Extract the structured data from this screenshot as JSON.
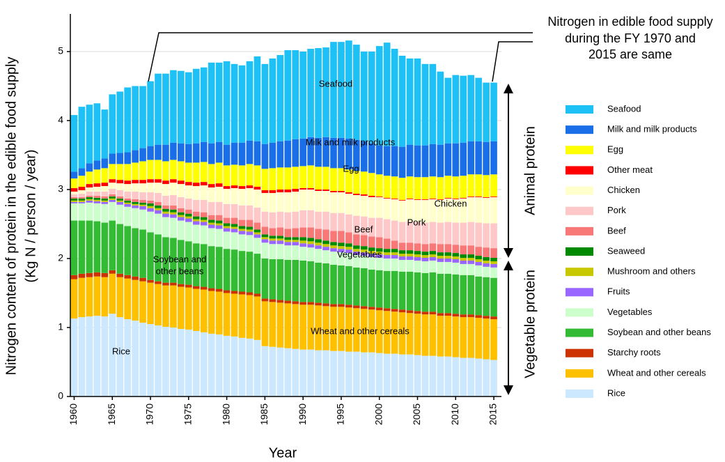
{
  "chart_data": {
    "type": "stacked_bar",
    "y_label": [
      "Nitrogen content of protein in the edible food supply",
      "(Kg N / person / year)"
    ],
    "x_label": "Year",
    "annotation": [
      "Nitrogen in edible food  supply",
      "during the FY 1970 and",
      "2015 are same"
    ],
    "groups": [
      "Animal protein",
      "Vegetable protein"
    ],
    "labels": [
      "Seafood",
      "Milk and milk products",
      "Egg",
      "Chicken",
      "Pork",
      "Beef",
      "Vegetables",
      "Soybean and",
      "other beans",
      "Wheat and other cereals",
      "Rice"
    ],
    "x": [
      1960,
      1961,
      1962,
      1963,
      1964,
      1965,
      1966,
      1967,
      1968,
      1969,
      1970,
      1971,
      1972,
      1973,
      1974,
      1975,
      1976,
      1977,
      1978,
      1979,
      1980,
      1981,
      1982,
      1983,
      1984,
      1985,
      1986,
      1987,
      1988,
      1989,
      1990,
      1991,
      1992,
      1993,
      1994,
      1995,
      1996,
      1997,
      1998,
      1999,
      2000,
      2001,
      2002,
      2003,
      2004,
      2005,
      2006,
      2007,
      2008,
      2009,
      2010,
      2011,
      2012,
      2013,
      2014,
      2015
    ],
    "xlim": [
      1959.5,
      2016
    ],
    "xticks": [
      1960,
      1965,
      1970,
      1975,
      1980,
      1985,
      1990,
      1995,
      2000,
      2005,
      2010,
      2015
    ],
    "ylim": [
      0,
      5.5
    ],
    "yticks": [
      0,
      1,
      2,
      3,
      4,
      5
    ],
    "grid": true,
    "legend": "right",
    "series": [
      {
        "name": "Rice",
        "color": "#cce8ff",
        "values": [
          1.13,
          1.15,
          1.16,
          1.17,
          1.16,
          1.2,
          1.15,
          1.12,
          1.1,
          1.07,
          1.05,
          1.03,
          1.01,
          1.0,
          0.98,
          0.97,
          0.95,
          0.93,
          0.91,
          0.9,
          0.88,
          0.87,
          0.85,
          0.84,
          0.82,
          0.73,
          0.72,
          0.71,
          0.7,
          0.69,
          0.68,
          0.68,
          0.67,
          0.67,
          0.66,
          0.66,
          0.65,
          0.65,
          0.64,
          0.64,
          0.63,
          0.62,
          0.62,
          0.61,
          0.61,
          0.6,
          0.59,
          0.59,
          0.58,
          0.58,
          0.57,
          0.56,
          0.56,
          0.55,
          0.54,
          0.53
        ]
      },
      {
        "name": "Wheat and other cereals",
        "color": "#ffc000",
        "values": [
          0.57,
          0.57,
          0.57,
          0.57,
          0.57,
          0.58,
          0.58,
          0.59,
          0.59,
          0.6,
          0.6,
          0.6,
          0.6,
          0.61,
          0.61,
          0.61,
          0.61,
          0.62,
          0.62,
          0.62,
          0.62,
          0.62,
          0.63,
          0.63,
          0.63,
          0.65,
          0.65,
          0.65,
          0.65,
          0.65,
          0.65,
          0.65,
          0.65,
          0.64,
          0.64,
          0.64,
          0.64,
          0.63,
          0.63,
          0.62,
          0.62,
          0.62,
          0.61,
          0.61,
          0.6,
          0.6,
          0.6,
          0.6,
          0.59,
          0.59,
          0.59,
          0.59,
          0.59,
          0.59,
          0.59,
          0.59
        ]
      },
      {
        "name": "Starchy roots",
        "color": "#cc3300",
        "values": [
          0.06,
          0.06,
          0.06,
          0.06,
          0.06,
          0.05,
          0.05,
          0.05,
          0.05,
          0.05,
          0.04,
          0.04,
          0.04,
          0.04,
          0.04,
          0.04,
          0.04,
          0.04,
          0.04,
          0.04,
          0.04,
          0.04,
          0.04,
          0.04,
          0.04,
          0.04,
          0.04,
          0.04,
          0.04,
          0.04,
          0.04,
          0.04,
          0.04,
          0.04,
          0.04,
          0.04,
          0.04,
          0.04,
          0.04,
          0.04,
          0.04,
          0.04,
          0.04,
          0.04,
          0.04,
          0.04,
          0.04,
          0.04,
          0.04,
          0.04,
          0.04,
          0.04,
          0.04,
          0.04,
          0.04,
          0.04
        ]
      },
      {
        "name": "Soybean and other beans",
        "color": "#33bb33",
        "values": [
          0.79,
          0.77,
          0.76,
          0.74,
          0.73,
          0.72,
          0.72,
          0.71,
          0.7,
          0.7,
          0.69,
          0.68,
          0.66,
          0.65,
          0.64,
          0.63,
          0.62,
          0.62,
          0.61,
          0.61,
          0.6,
          0.6,
          0.59,
          0.59,
          0.58,
          0.58,
          0.58,
          0.59,
          0.59,
          0.6,
          0.6,
          0.59,
          0.58,
          0.58,
          0.57,
          0.56,
          0.56,
          0.55,
          0.55,
          0.54,
          0.54,
          0.54,
          0.55,
          0.55,
          0.56,
          0.56,
          0.56,
          0.57,
          0.57,
          0.57,
          0.57,
          0.57,
          0.57,
          0.56,
          0.56,
          0.56
        ]
      },
      {
        "name": "Vegetables",
        "color": "#ccffcc",
        "values": [
          0.25,
          0.25,
          0.26,
          0.26,
          0.27,
          0.27,
          0.28,
          0.28,
          0.29,
          0.29,
          0.3,
          0.3,
          0.29,
          0.29,
          0.28,
          0.28,
          0.27,
          0.27,
          0.26,
          0.26,
          0.25,
          0.25,
          0.24,
          0.24,
          0.23,
          0.23,
          0.22,
          0.22,
          0.21,
          0.21,
          0.2,
          0.2,
          0.2,
          0.19,
          0.19,
          0.19,
          0.19,
          0.18,
          0.18,
          0.18,
          0.18,
          0.18,
          0.18,
          0.17,
          0.17,
          0.17,
          0.17,
          0.17,
          0.17,
          0.17,
          0.17,
          0.16,
          0.16,
          0.16,
          0.15,
          0.15
        ]
      },
      {
        "name": "Fruits",
        "color": "#9966ff",
        "values": [
          0.02,
          0.02,
          0.03,
          0.03,
          0.03,
          0.03,
          0.04,
          0.04,
          0.04,
          0.05,
          0.05,
          0.05,
          0.05,
          0.05,
          0.05,
          0.05,
          0.05,
          0.05,
          0.05,
          0.05,
          0.05,
          0.05,
          0.05,
          0.05,
          0.05,
          0.05,
          0.05,
          0.05,
          0.05,
          0.05,
          0.05,
          0.05,
          0.05,
          0.05,
          0.05,
          0.05,
          0.05,
          0.05,
          0.05,
          0.05,
          0.05,
          0.05,
          0.05,
          0.05,
          0.05,
          0.05,
          0.05,
          0.05,
          0.05,
          0.05,
          0.05,
          0.05,
          0.05,
          0.05,
          0.05,
          0.05
        ]
      },
      {
        "name": "Mushroom and others",
        "color": "#c8c800",
        "values": [
          0.02,
          0.02,
          0.02,
          0.02,
          0.02,
          0.02,
          0.02,
          0.02,
          0.02,
          0.02,
          0.03,
          0.03,
          0.03,
          0.03,
          0.03,
          0.03,
          0.03,
          0.03,
          0.03,
          0.03,
          0.03,
          0.03,
          0.03,
          0.03,
          0.03,
          0.03,
          0.03,
          0.03,
          0.03,
          0.03,
          0.04,
          0.04,
          0.04,
          0.04,
          0.04,
          0.04,
          0.04,
          0.04,
          0.04,
          0.04,
          0.04,
          0.04,
          0.04,
          0.04,
          0.04,
          0.04,
          0.04,
          0.04,
          0.04,
          0.04,
          0.04,
          0.04,
          0.04,
          0.04,
          0.04,
          0.04
        ]
      },
      {
        "name": "Seaweed",
        "color": "#008a00",
        "values": [
          0.03,
          0.03,
          0.03,
          0.03,
          0.03,
          0.03,
          0.03,
          0.03,
          0.03,
          0.03,
          0.04,
          0.04,
          0.04,
          0.04,
          0.04,
          0.04,
          0.04,
          0.04,
          0.04,
          0.04,
          0.04,
          0.04,
          0.04,
          0.04,
          0.04,
          0.04,
          0.04,
          0.04,
          0.04,
          0.04,
          0.05,
          0.05,
          0.05,
          0.05,
          0.05,
          0.05,
          0.05,
          0.05,
          0.05,
          0.05,
          0.05,
          0.05,
          0.05,
          0.05,
          0.05,
          0.05,
          0.05,
          0.05,
          0.05,
          0.05,
          0.05,
          0.05,
          0.05,
          0.05,
          0.05,
          0.05
        ]
      },
      {
        "name": "Beef",
        "color": "#f87878",
        "values": [
          0.02,
          0.02,
          0.02,
          0.03,
          0.03,
          0.03,
          0.03,
          0.03,
          0.04,
          0.04,
          0.04,
          0.05,
          0.05,
          0.06,
          0.06,
          0.06,
          0.07,
          0.07,
          0.07,
          0.08,
          0.08,
          0.09,
          0.09,
          0.1,
          0.1,
          0.11,
          0.11,
          0.12,
          0.12,
          0.13,
          0.14,
          0.15,
          0.15,
          0.16,
          0.16,
          0.17,
          0.16,
          0.16,
          0.16,
          0.16,
          0.16,
          0.15,
          0.12,
          0.11,
          0.11,
          0.11,
          0.11,
          0.11,
          0.12,
          0.12,
          0.12,
          0.13,
          0.13,
          0.13,
          0.14,
          0.14
        ]
      },
      {
        "name": "Pork",
        "color": "#ffc8c8",
        "values": [
          0.04,
          0.05,
          0.06,
          0.06,
          0.07,
          0.08,
          0.09,
          0.1,
          0.11,
          0.11,
          0.12,
          0.13,
          0.14,
          0.15,
          0.16,
          0.16,
          0.17,
          0.18,
          0.19,
          0.19,
          0.2,
          0.2,
          0.21,
          0.21,
          0.22,
          0.22,
          0.23,
          0.23,
          0.24,
          0.24,
          0.25,
          0.25,
          0.25,
          0.26,
          0.26,
          0.26,
          0.26,
          0.27,
          0.27,
          0.27,
          0.28,
          0.28,
          0.29,
          0.3,
          0.31,
          0.31,
          0.31,
          0.31,
          0.31,
          0.32,
          0.32,
          0.33,
          0.34,
          0.35,
          0.35,
          0.36
        ]
      },
      {
        "name": "Chicken",
        "color": "#ffffcc",
        "values": [
          0.04,
          0.05,
          0.06,
          0.07,
          0.08,
          0.09,
          0.1,
          0.11,
          0.12,
          0.13,
          0.14,
          0.15,
          0.17,
          0.18,
          0.19,
          0.19,
          0.2,
          0.21,
          0.21,
          0.22,
          0.22,
          0.23,
          0.24,
          0.25,
          0.26,
          0.27,
          0.28,
          0.28,
          0.29,
          0.29,
          0.3,
          0.3,
          0.3,
          0.3,
          0.3,
          0.3,
          0.3,
          0.3,
          0.3,
          0.3,
          0.3,
          0.3,
          0.31,
          0.31,
          0.32,
          0.32,
          0.33,
          0.33,
          0.33,
          0.34,
          0.34,
          0.35,
          0.36,
          0.37,
          0.37,
          0.38
        ]
      },
      {
        "name": "Other meat",
        "color": "#ff0000",
        "values": [
          0.05,
          0.05,
          0.05,
          0.05,
          0.05,
          0.05,
          0.05,
          0.05,
          0.05,
          0.05,
          0.05,
          0.05,
          0.05,
          0.05,
          0.05,
          0.05,
          0.05,
          0.05,
          0.05,
          0.05,
          0.04,
          0.04,
          0.04,
          0.04,
          0.04,
          0.04,
          0.04,
          0.04,
          0.04,
          0.04,
          0.02,
          0.02,
          0.02,
          0.02,
          0.02,
          0.02,
          0.02,
          0.02,
          0.02,
          0.02,
          0.01,
          0.01,
          0.01,
          0.01,
          0.01,
          0.01,
          0.01,
          0.01,
          0.01,
          0.01,
          0.01,
          0.01,
          0.01,
          0.01,
          0.01,
          0.01
        ]
      },
      {
        "name": "Egg",
        "color": "#ffff00",
        "values": [
          0.14,
          0.16,
          0.18,
          0.2,
          0.21,
          0.22,
          0.23,
          0.24,
          0.25,
          0.27,
          0.28,
          0.28,
          0.28,
          0.28,
          0.28,
          0.28,
          0.29,
          0.29,
          0.29,
          0.3,
          0.3,
          0.3,
          0.3,
          0.31,
          0.31,
          0.31,
          0.32,
          0.32,
          0.32,
          0.32,
          0.32,
          0.33,
          0.33,
          0.33,
          0.33,
          0.33,
          0.33,
          0.33,
          0.33,
          0.33,
          0.32,
          0.32,
          0.32,
          0.32,
          0.32,
          0.32,
          0.32,
          0.32,
          0.32,
          0.32,
          0.32,
          0.32,
          0.32,
          0.32,
          0.32,
          0.32
        ]
      },
      {
        "name": "Milk and milk products",
        "color": "#1a6ee8",
        "values": [
          0.1,
          0.11,
          0.12,
          0.13,
          0.14,
          0.15,
          0.16,
          0.17,
          0.18,
          0.19,
          0.2,
          0.22,
          0.24,
          0.25,
          0.26,
          0.27,
          0.28,
          0.29,
          0.3,
          0.3,
          0.3,
          0.32,
          0.33,
          0.34,
          0.35,
          0.36,
          0.37,
          0.38,
          0.39,
          0.4,
          0.4,
          0.41,
          0.42,
          0.43,
          0.44,
          0.44,
          0.45,
          0.45,
          0.44,
          0.43,
          0.42,
          0.43,
          0.44,
          0.45,
          0.46,
          0.46,
          0.46,
          0.47,
          0.47,
          0.47,
          0.48,
          0.48,
          0.48,
          0.48,
          0.48,
          0.48
        ]
      },
      {
        "name": "Seafood",
        "color": "#1ec1f5",
        "values": [
          0.82,
          0.89,
          0.85,
          0.83,
          0.71,
          0.86,
          0.89,
          0.94,
          0.93,
          0.9,
          0.94,
          1.03,
          1.03,
          1.05,
          1.05,
          1.04,
          1.08,
          1.08,
          1.17,
          1.15,
          1.21,
          1.14,
          1.12,
          1.15,
          1.23,
          1.16,
          1.22,
          1.25,
          1.31,
          1.29,
          1.26,
          1.28,
          1.3,
          1.3,
          1.39,
          1.39,
          1.42,
          1.38,
          1.3,
          1.33,
          1.44,
          1.5,
          1.41,
          1.32,
          1.25,
          1.26,
          1.18,
          1.16,
          1.06,
          0.95,
          0.99,
          0.97,
          0.96,
          0.92,
          0.86,
          0.85
        ]
      }
    ]
  }
}
